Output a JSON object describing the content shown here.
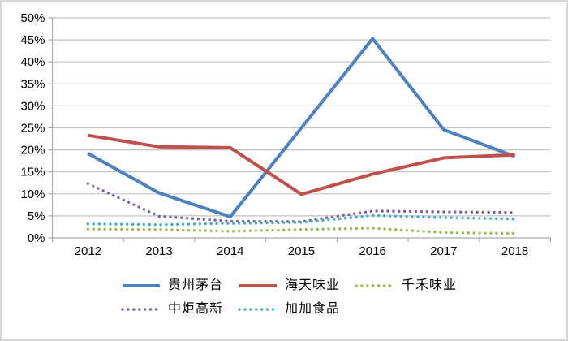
{
  "chart_data": {
    "type": "line",
    "categories": [
      "2012",
      "2013",
      "2014",
      "2015",
      "2016",
      "2017",
      "2018"
    ],
    "series": [
      {
        "name": "贵州茅台",
        "color": "#4F81BD",
        "style": "solid",
        "values": [
          19.2,
          10.2,
          4.8,
          25.0,
          45.3,
          24.6,
          18.5
        ]
      },
      {
        "name": "海天味业",
        "color": "#C0504D",
        "style": "solid",
        "values": [
          23.3,
          20.7,
          20.5,
          9.9,
          14.5,
          18.2,
          18.9
        ]
      },
      {
        "name": "千禾味业",
        "color": "#9BBB59",
        "style": "dotted",
        "values": [
          2.0,
          1.9,
          1.5,
          1.9,
          2.2,
          1.2,
          1.0
        ]
      },
      {
        "name": "中炬高新",
        "color": "#8064A2",
        "style": "dotted",
        "values": [
          12.3,
          4.9,
          3.8,
          3.7,
          6.1,
          5.9,
          5.8
        ]
      },
      {
        "name": "加加食品",
        "color": "#4BACC6",
        "style": "dotted",
        "values": [
          3.2,
          3.0,
          3.3,
          3.5,
          5.1,
          4.6,
          4.3
        ]
      }
    ],
    "title": "",
    "xlabel": "",
    "ylabel": "",
    "ylim": [
      0,
      50
    ],
    "y_tick_step": 5,
    "y_tick_labels": [
      "0%",
      "5%",
      "10%",
      "15%",
      "20%",
      "25%",
      "30%",
      "35%",
      "40%",
      "45%",
      "50%"
    ],
    "grid": true,
    "legend_position": "bottom"
  },
  "colors": {
    "gridline": "#C3C3C3",
    "axis": "#ABABAB",
    "text": "#000000",
    "frame_border": "#D7D7D7",
    "background": "#FFFFFF"
  }
}
